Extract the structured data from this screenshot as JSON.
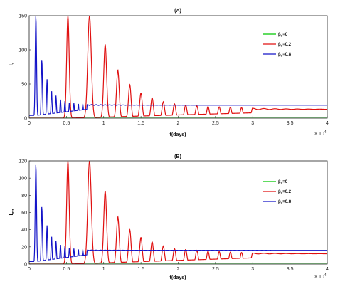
{
  "chart_data": [
    {
      "type": "line",
      "title": "(A)",
      "xlabel": "t(days)",
      "ylabel": "I",
      "ylabel_sub": "z",
      "x_multiplier": "× 10",
      "x_multiplier_exp": "4",
      "xlim": [
        0,
        4
      ],
      "ylim": [
        0,
        150
      ],
      "xticks": [
        "0",
        "0.5",
        "1",
        "1.5",
        "2",
        "2.5",
        "3",
        "3.5",
        "4"
      ],
      "yticks": [
        "0",
        "50",
        "100",
        "150"
      ],
      "legend_position": "top-right",
      "series": [
        {
          "name": "β",
          "name_sub": "s",
          "name_suffix": "=0",
          "color": "#00c800",
          "peaks": [],
          "baseline": 0,
          "final": 0
        },
        {
          "name": "β",
          "name_sub": "s",
          "name_suffix": "=0.2",
          "color": "#e01010",
          "peaks": [
            [
              0.52,
              150
            ],
            [
              0.81,
              150
            ],
            [
              1.02,
              108
            ],
            [
              1.19,
              70
            ],
            [
              1.35,
              49
            ],
            [
              1.5,
              37
            ],
            [
              1.65,
              30
            ],
            [
              1.8,
              24
            ],
            [
              1.95,
              21
            ],
            [
              2.1,
              19
            ],
            [
              2.25,
              18
            ],
            [
              2.4,
              17
            ],
            [
              2.55,
              16.5
            ],
            [
              2.7,
              16
            ],
            [
              2.85,
              15.5
            ],
            [
              3.0,
              15
            ]
          ],
          "baseline": 0,
          "final": 13
        },
        {
          "name": "β",
          "name_sub": "s",
          "name_suffix": "=0.8",
          "color": "#1414c8",
          "peaks": [
            [
              0.09,
              150
            ],
            [
              0.17,
              86
            ],
            [
              0.24,
              57
            ],
            [
              0.3,
              41
            ],
            [
              0.36,
              33
            ],
            [
              0.42,
              28
            ],
            [
              0.48,
              25
            ],
            [
              0.54,
              23
            ],
            [
              0.6,
              22
            ],
            [
              0.66,
              21.5
            ],
            [
              0.72,
              21
            ],
            [
              0.78,
              20.5
            ]
          ],
          "baseline": 4,
          "final": 19
        }
      ]
    },
    {
      "type": "line",
      "title": "(B)",
      "xlabel": "t(days)",
      "ylabel": "I",
      "ylabel_sub": "mz",
      "x_multiplier": "× 10",
      "x_multiplier_exp": "4",
      "xlim": [
        0,
        4
      ],
      "ylim": [
        0,
        120
      ],
      "xticks": [
        "0",
        "0.5",
        "1",
        "1.5",
        "2",
        "2.5",
        "3",
        "3.5",
        "4"
      ],
      "yticks": [
        "0",
        "20",
        "40",
        "60",
        "80",
        "100",
        "120"
      ],
      "legend_position": "top-right",
      "series": [
        {
          "name": "β",
          "name_sub": "s",
          "name_suffix": "=0",
          "color": "#00c800",
          "peaks": [],
          "baseline": 0,
          "final": 0
        },
        {
          "name": "β",
          "name_sub": "s",
          "name_suffix": "=0.2",
          "color": "#e01010",
          "peaks": [
            [
              0.52,
              120
            ],
            [
              0.81,
              120
            ],
            [
              1.02,
              85
            ],
            [
              1.19,
              55
            ],
            [
              1.35,
              40
            ],
            [
              1.5,
              31
            ],
            [
              1.65,
              26
            ],
            [
              1.8,
              21
            ],
            [
              1.95,
              18
            ],
            [
              2.1,
              17
            ],
            [
              2.25,
              16
            ],
            [
              2.4,
              15
            ],
            [
              2.55,
              14.5
            ],
            [
              2.7,
              14
            ],
            [
              2.85,
              13.5
            ],
            [
              3.0,
              13
            ]
          ],
          "baseline": 0,
          "final": 12
        },
        {
          "name": "β",
          "name_sub": "s",
          "name_suffix": "=0.8",
          "color": "#1414c8",
          "peaks": [
            [
              0.09,
              116
            ],
            [
              0.17,
              67
            ],
            [
              0.24,
              45
            ],
            [
              0.3,
              33
            ],
            [
              0.36,
              27
            ],
            [
              0.42,
              23
            ],
            [
              0.48,
              21
            ],
            [
              0.54,
              19
            ],
            [
              0.6,
              18
            ],
            [
              0.66,
              17.5
            ],
            [
              0.72,
              17
            ],
            [
              0.78,
              16.5
            ]
          ],
          "baseline": 3,
          "final": 16
        }
      ]
    }
  ]
}
